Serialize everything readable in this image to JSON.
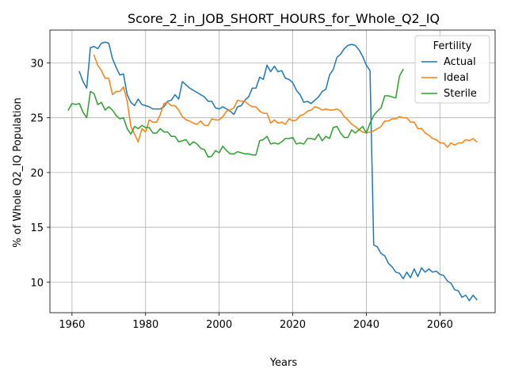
{
  "chart_data": {
    "type": "line",
    "title": "Score_2_in_JOB_SHORT_HOURS_for_Whole_Q2_IQ",
    "xlabel": "Years",
    "ylabel": "% of Whole Q2_IQ Population",
    "xlim": [
      1954,
      2075
    ],
    "ylim": [
      7.2,
      33.0
    ],
    "xticks": [
      1960,
      1980,
      2000,
      2020,
      2040,
      2060
    ],
    "yticks": [
      10,
      15,
      20,
      25,
      30
    ],
    "grid": true,
    "legend": {
      "title": "Fertility",
      "position": "upper-right"
    },
    "series": [
      {
        "name": "Actual",
        "color": "#1f77b4",
        "points": [
          [
            1962,
            29.2
          ],
          [
            1963,
            28.3
          ],
          [
            1964,
            27.7
          ],
          [
            1965,
            31.4
          ],
          [
            1966,
            31.5
          ],
          [
            1967,
            31.3
          ],
          [
            1968,
            31.8
          ],
          [
            1969,
            31.9
          ],
          [
            1970,
            31.8
          ],
          [
            1971,
            30.4
          ],
          [
            1972,
            29.6
          ],
          [
            1973,
            28.9
          ],
          [
            1974,
            29.0
          ],
          [
            1975,
            27.1
          ],
          [
            1976,
            26.4
          ],
          [
            1977,
            26.1
          ],
          [
            1978,
            26.7
          ],
          [
            1979,
            26.2
          ],
          [
            1980,
            26.1
          ],
          [
            1981,
            26.0
          ],
          [
            1982,
            25.8
          ],
          [
            1983,
            25.8
          ],
          [
            1984,
            25.8
          ],
          [
            1985,
            26.0
          ],
          [
            1986,
            26.5
          ],
          [
            1987,
            26.6
          ],
          [
            1988,
            27.1
          ],
          [
            1989,
            26.7
          ],
          [
            1990,
            28.3
          ],
          [
            1991,
            28.0
          ],
          [
            1992,
            27.7
          ],
          [
            1993,
            27.5
          ],
          [
            1994,
            27.3
          ],
          [
            1995,
            27.1
          ],
          [
            1996,
            26.9
          ],
          [
            1997,
            26.5
          ],
          [
            1998,
            26.5
          ],
          [
            1999,
            25.9
          ],
          [
            2000,
            25.8
          ],
          [
            2001,
            26.0
          ],
          [
            2002,
            25.8
          ],
          [
            2003,
            25.6
          ],
          [
            2004,
            25.3
          ],
          [
            2005,
            26.0
          ],
          [
            2006,
            26.1
          ],
          [
            2007,
            26.6
          ],
          [
            2008,
            26.9
          ],
          [
            2009,
            27.7
          ],
          [
            2010,
            27.7
          ],
          [
            2011,
            28.7
          ],
          [
            2012,
            28.5
          ],
          [
            2013,
            29.8
          ],
          [
            2014,
            29.2
          ],
          [
            2015,
            29.7
          ],
          [
            2016,
            29.2
          ],
          [
            2017,
            29.3
          ],
          [
            2018,
            28.6
          ],
          [
            2019,
            28.5
          ],
          [
            2020,
            28.2
          ],
          [
            2021,
            27.5
          ],
          [
            2022,
            27.1
          ],
          [
            2023,
            26.4
          ],
          [
            2024,
            26.5
          ],
          [
            2025,
            26.3
          ],
          [
            2026,
            26.6
          ],
          [
            2027,
            26.9
          ],
          [
            2028,
            27.4
          ],
          [
            2029,
            27.6
          ],
          [
            2030,
            28.9
          ],
          [
            2031,
            29.4
          ],
          [
            2032,
            30.5
          ],
          [
            2033,
            30.8
          ],
          [
            2034,
            31.3
          ],
          [
            2035,
            31.6
          ],
          [
            2036,
            31.7
          ],
          [
            2037,
            31.6
          ],
          [
            2038,
            31.2
          ],
          [
            2039,
            30.6
          ],
          [
            2040,
            29.8
          ],
          [
            2041,
            29.3
          ],
          [
            2042,
            13.4
          ],
          [
            2043,
            13.2
          ],
          [
            2044,
            12.6
          ],
          [
            2045,
            12.4
          ],
          [
            2046,
            11.7
          ],
          [
            2047,
            11.4
          ],
          [
            2048,
            10.9
          ],
          [
            2049,
            10.8
          ],
          [
            2050,
            10.3
          ],
          [
            2051,
            10.9
          ],
          [
            2052,
            10.4
          ],
          [
            2053,
            11.2
          ],
          [
            2054,
            10.5
          ],
          [
            2055,
            11.3
          ],
          [
            2056,
            10.9
          ],
          [
            2057,
            11.2
          ],
          [
            2058,
            10.9
          ],
          [
            2059,
            11.0
          ],
          [
            2060,
            10.7
          ],
          [
            2061,
            10.6
          ],
          [
            2062,
            10.1
          ],
          [
            2063,
            9.9
          ],
          [
            2064,
            9.3
          ],
          [
            2065,
            9.2
          ],
          [
            2066,
            8.6
          ],
          [
            2067,
            8.8
          ],
          [
            2068,
            8.3
          ],
          [
            2069,
            8.8
          ],
          [
            2070,
            8.4
          ]
        ]
      },
      {
        "name": "Ideal",
        "color": "#ff7f0e",
        "points": [
          [
            1966,
            30.7
          ],
          [
            1967,
            29.8
          ],
          [
            1968,
            29.3
          ],
          [
            1969,
            28.6
          ],
          [
            1970,
            28.6
          ],
          [
            1971,
            27.1
          ],
          [
            1972,
            27.4
          ],
          [
            1973,
            27.4
          ],
          [
            1974,
            27.8
          ],
          [
            1975,
            26.5
          ],
          [
            1976,
            24.2
          ],
          [
            1977,
            23.5
          ],
          [
            1978,
            22.8
          ],
          [
            1979,
            24.0
          ],
          [
            1980,
            23.7
          ],
          [
            1981,
            24.8
          ],
          [
            1982,
            24.6
          ],
          [
            1983,
            24.6
          ],
          [
            1984,
            25.3
          ],
          [
            1985,
            26.3
          ],
          [
            1986,
            26.4
          ],
          [
            1987,
            26.1
          ],
          [
            1988,
            26.1
          ],
          [
            1989,
            25.7
          ],
          [
            1990,
            25.1
          ],
          [
            1991,
            24.8
          ],
          [
            1992,
            24.7
          ],
          [
            1993,
            24.5
          ],
          [
            1994,
            24.4
          ],
          [
            1995,
            24.7
          ],
          [
            1996,
            24.3
          ],
          [
            1997,
            24.3
          ],
          [
            1998,
            24.9
          ],
          [
            1999,
            24.8
          ],
          [
            2000,
            24.8
          ],
          [
            2001,
            25.1
          ],
          [
            2002,
            25.6
          ],
          [
            2003,
            25.7
          ],
          [
            2004,
            25.9
          ],
          [
            2005,
            26.6
          ],
          [
            2006,
            26.5
          ],
          [
            2007,
            26.5
          ],
          [
            2008,
            26.2
          ],
          [
            2009,
            26.0
          ],
          [
            2010,
            26.0
          ],
          [
            2011,
            25.6
          ],
          [
            2012,
            25.4
          ],
          [
            2013,
            25.4
          ],
          [
            2014,
            24.5
          ],
          [
            2015,
            24.8
          ],
          [
            2016,
            24.5
          ],
          [
            2017,
            24.6
          ],
          [
            2018,
            24.4
          ],
          [
            2019,
            24.9
          ],
          [
            2020,
            24.7
          ],
          [
            2021,
            24.8
          ],
          [
            2022,
            25.2
          ],
          [
            2023,
            25.3
          ],
          [
            2024,
            25.6
          ],
          [
            2025,
            25.7
          ],
          [
            2026,
            26.0
          ],
          [
            2027,
            25.9
          ],
          [
            2028,
            25.7
          ],
          [
            2029,
            25.8
          ],
          [
            2030,
            25.7
          ],
          [
            2031,
            25.7
          ],
          [
            2032,
            25.8
          ],
          [
            2033,
            25.6
          ],
          [
            2034,
            25.1
          ],
          [
            2035,
            24.8
          ],
          [
            2036,
            24.4
          ],
          [
            2037,
            24.2
          ],
          [
            2038,
            23.9
          ],
          [
            2039,
            23.7
          ],
          [
            2040,
            23.6
          ],
          [
            2041,
            23.7
          ],
          [
            2042,
            23.8
          ],
          [
            2043,
            24.0
          ],
          [
            2044,
            24.2
          ],
          [
            2045,
            24.7
          ],
          [
            2046,
            24.7
          ],
          [
            2047,
            24.9
          ],
          [
            2048,
            24.9
          ],
          [
            2049,
            25.1
          ],
          [
            2050,
            25.0
          ],
          [
            2051,
            25.0
          ],
          [
            2052,
            24.6
          ],
          [
            2053,
            24.6
          ],
          [
            2054,
            24.0
          ],
          [
            2055,
            24.0
          ],
          [
            2056,
            23.6
          ],
          [
            2057,
            23.4
          ],
          [
            2058,
            23.1
          ],
          [
            2059,
            23.0
          ],
          [
            2060,
            22.7
          ],
          [
            2061,
            22.7
          ],
          [
            2062,
            22.3
          ],
          [
            2063,
            22.7
          ],
          [
            2064,
            22.5
          ],
          [
            2065,
            22.7
          ],
          [
            2066,
            22.7
          ],
          [
            2067,
            23.0
          ],
          [
            2068,
            22.9
          ],
          [
            2069,
            23.1
          ],
          [
            2070,
            22.8
          ]
        ]
      },
      {
        "name": "Sterile",
        "color": "#2ca02c",
        "points": [
          [
            1959,
            25.7
          ],
          [
            1960,
            26.3
          ],
          [
            1961,
            26.2
          ],
          [
            1962,
            26.3
          ],
          [
            1963,
            25.5
          ],
          [
            1964,
            25.0
          ],
          [
            1965,
            27.4
          ],
          [
            1966,
            27.2
          ],
          [
            1967,
            26.2
          ],
          [
            1968,
            26.4
          ],
          [
            1969,
            25.7
          ],
          [
            1970,
            26.0
          ],
          [
            1971,
            25.7
          ],
          [
            1972,
            25.2
          ],
          [
            1973,
            24.9
          ],
          [
            1974,
            25.0
          ],
          [
            1975,
            24.0
          ],
          [
            1976,
            23.5
          ],
          [
            1977,
            24.2
          ],
          [
            1978,
            24.0
          ],
          [
            1979,
            24.3
          ],
          [
            1980,
            24.1
          ],
          [
            1981,
            24.1
          ],
          [
            1982,
            23.6
          ],
          [
            1983,
            23.6
          ],
          [
            1984,
            24.0
          ],
          [
            1985,
            23.7
          ],
          [
            1986,
            23.7
          ],
          [
            1987,
            23.3
          ],
          [
            1988,
            23.3
          ],
          [
            1989,
            22.8
          ],
          [
            1990,
            22.9
          ],
          [
            1991,
            23.0
          ],
          [
            1992,
            22.5
          ],
          [
            1993,
            22.8
          ],
          [
            1994,
            22.6
          ],
          [
            1995,
            22.2
          ],
          [
            1996,
            22.1
          ],
          [
            1997,
            21.4
          ],
          [
            1998,
            21.5
          ],
          [
            1999,
            22.0
          ],
          [
            2000,
            21.8
          ],
          [
            2001,
            22.4
          ],
          [
            2002,
            22.0
          ],
          [
            2003,
            21.7
          ],
          [
            2004,
            21.7
          ],
          [
            2005,
            21.9
          ],
          [
            2006,
            21.8
          ],
          [
            2007,
            21.7
          ],
          [
            2008,
            21.7
          ],
          [
            2009,
            21.6
          ],
          [
            2010,
            21.6
          ],
          [
            2011,
            22.9
          ],
          [
            2012,
            23.0
          ],
          [
            2013,
            23.3
          ],
          [
            2014,
            22.6
          ],
          [
            2015,
            22.7
          ],
          [
            2016,
            22.6
          ],
          [
            2017,
            22.8
          ],
          [
            2018,
            23.1
          ],
          [
            2019,
            23.1
          ],
          [
            2020,
            23.2
          ],
          [
            2021,
            22.6
          ],
          [
            2022,
            22.7
          ],
          [
            2023,
            22.6
          ],
          [
            2024,
            23.1
          ],
          [
            2025,
            23.1
          ],
          [
            2026,
            23.0
          ],
          [
            2027,
            23.5
          ],
          [
            2028,
            22.9
          ],
          [
            2029,
            23.3
          ],
          [
            2030,
            23.1
          ],
          [
            2031,
            24.1
          ],
          [
            2032,
            24.2
          ],
          [
            2033,
            23.6
          ],
          [
            2034,
            23.2
          ],
          [
            2035,
            23.2
          ],
          [
            2036,
            23.9
          ],
          [
            2037,
            23.6
          ],
          [
            2038,
            23.9
          ],
          [
            2039,
            24.2
          ],
          [
            2040,
            23.6
          ],
          [
            2041,
            24.5
          ],
          [
            2042,
            25.2
          ],
          [
            2043,
            25.6
          ],
          [
            2044,
            25.9
          ],
          [
            2045,
            27.0
          ],
          [
            2046,
            27.0
          ],
          [
            2047,
            26.9
          ],
          [
            2048,
            26.8
          ],
          [
            2049,
            28.8
          ],
          [
            2050,
            29.4
          ]
        ]
      }
    ]
  }
}
